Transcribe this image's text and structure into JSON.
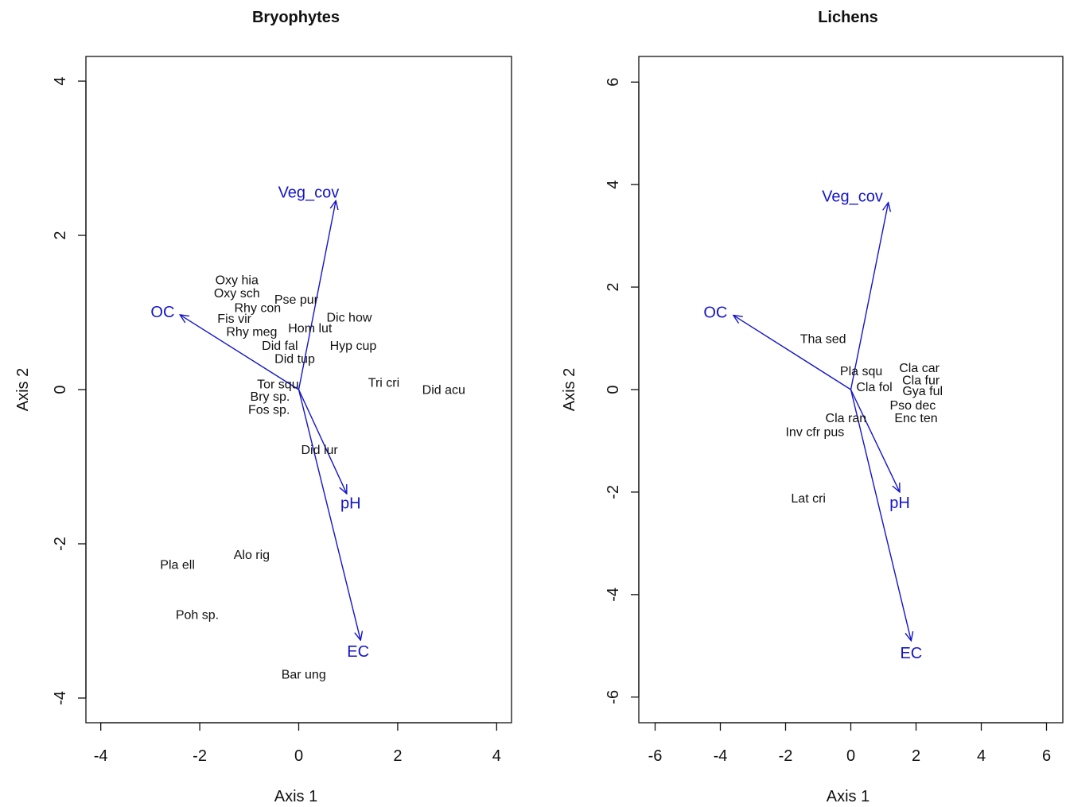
{
  "chart_data": [
    {
      "type": "scatter",
      "title": "Bryophytes",
      "xlabel": "Axis 1",
      "ylabel": "Axis 2",
      "xlim": [
        -4.3,
        4.3
      ],
      "ylim": [
        -4.32,
        4.32
      ],
      "xticks": [
        "-4",
        "-2",
        "0",
        "2",
        "4"
      ],
      "yticks": [
        "-4",
        "-2",
        "0",
        "2",
        "4"
      ],
      "grid": false,
      "legend": false,
      "vector_color": "#1515c8",
      "species": [
        {
          "label": "Oxy hia",
          "x": -1.25,
          "y": 1.41
        },
        {
          "label": "Oxy sch",
          "x": -1.25,
          "y": 1.24
        },
        {
          "label": "Pse pur",
          "x": -0.05,
          "y": 1.16
        },
        {
          "label": "Rhy con",
          "x": -0.83,
          "y": 1.05
        },
        {
          "label": "Fis vir",
          "x": -1.3,
          "y": 0.91
        },
        {
          "label": "Dic how",
          "x": 1.02,
          "y": 0.93
        },
        {
          "label": "Hom lut",
          "x": 0.23,
          "y": 0.79
        },
        {
          "label": "Rhy meg",
          "x": -0.95,
          "y": 0.74
        },
        {
          "label": "Did fal",
          "x": -0.38,
          "y": 0.56
        },
        {
          "label": "Hyp cup",
          "x": 1.1,
          "y": 0.56
        },
        {
          "label": "Did tup",
          "x": -0.08,
          "y": 0.39
        },
        {
          "label": "Tri cri",
          "x": 1.72,
          "y": 0.08
        },
        {
          "label": "Did acu",
          "x": 2.93,
          "y": -0.01
        },
        {
          "label": "Tor squ",
          "x": -0.42,
          "y": 0.06
        },
        {
          "label": "Bry sp.",
          "x": -0.58,
          "y": -0.1
        },
        {
          "label": "Fos sp.",
          "x": -0.6,
          "y": -0.27
        },
        {
          "label": "Did lur",
          "x": 0.42,
          "y": -0.79
        },
        {
          "label": "Alo rig",
          "x": -0.95,
          "y": -2.15
        },
        {
          "label": "Pla ell",
          "x": -2.45,
          "y": -2.28
        },
        {
          "label": "Poh sp.",
          "x": -2.05,
          "y": -2.93
        },
        {
          "label": "Bar ung",
          "x": 0.1,
          "y": -3.7
        }
      ],
      "vectors": [
        {
          "label": "Veg_cov",
          "x": 0.75,
          "y": 2.45,
          "label_x": 0.2,
          "label_y": 2.55
        },
        {
          "label": "OC",
          "x": -2.4,
          "y": 0.97,
          "label_x": -2.75,
          "label_y": 1.0
        },
        {
          "label": "pH",
          "x": 0.97,
          "y": -1.35,
          "label_x": 1.05,
          "label_y": -1.48
        },
        {
          "label": "EC",
          "x": 1.25,
          "y": -3.25,
          "label_x": 1.2,
          "label_y": -3.4
        }
      ]
    },
    {
      "type": "scatter",
      "title": "Lichens",
      "xlabel": "Axis 1",
      "ylabel": "Axis 2",
      "xlim": [
        -6.5,
        6.5
      ],
      "ylim": [
        -6.5,
        6.5
      ],
      "xticks": [
        "-6",
        "-4",
        "-2",
        "0",
        "2",
        "4",
        "6"
      ],
      "yticks": [
        "-6",
        "-4",
        "-2",
        "0",
        "2",
        "4",
        "6"
      ],
      "grid": false,
      "legend": false,
      "vector_color": "#1515c8",
      "species": [
        {
          "label": "Tha sed",
          "x": -0.85,
          "y": 0.98
        },
        {
          "label": "Pla squ",
          "x": 0.32,
          "y": 0.35
        },
        {
          "label": "Cla car",
          "x": 2.1,
          "y": 0.41
        },
        {
          "label": "Cla fur",
          "x": 2.15,
          "y": 0.17
        },
        {
          "label": "Cla fol",
          "x": 0.72,
          "y": 0.04
        },
        {
          "label": "Gya ful",
          "x": 2.2,
          "y": -0.04
        },
        {
          "label": "Pso dec",
          "x": 1.9,
          "y": -0.32
        },
        {
          "label": "Enc ten",
          "x": 2.0,
          "y": -0.57
        },
        {
          "label": "Cla ran",
          "x": -0.15,
          "y": -0.57
        },
        {
          "label": "Inv cfr pus",
          "x": -1.1,
          "y": -0.84
        },
        {
          "label": "Lat cri",
          "x": -1.3,
          "y": -2.13
        }
      ],
      "vectors": [
        {
          "label": "Veg_cov",
          "x": 1.15,
          "y": 3.65,
          "label_x": 0.05,
          "label_y": 3.76
        },
        {
          "label": "OC",
          "x": -3.6,
          "y": 1.45,
          "label_x": -4.15,
          "label_y": 1.5
        },
        {
          "label": "pH",
          "x": 1.5,
          "y": -2.0,
          "label_x": 1.5,
          "label_y": -2.22
        },
        {
          "label": "EC",
          "x": 1.85,
          "y": -4.9,
          "label_x": 1.85,
          "label_y": -5.15
        }
      ]
    }
  ]
}
